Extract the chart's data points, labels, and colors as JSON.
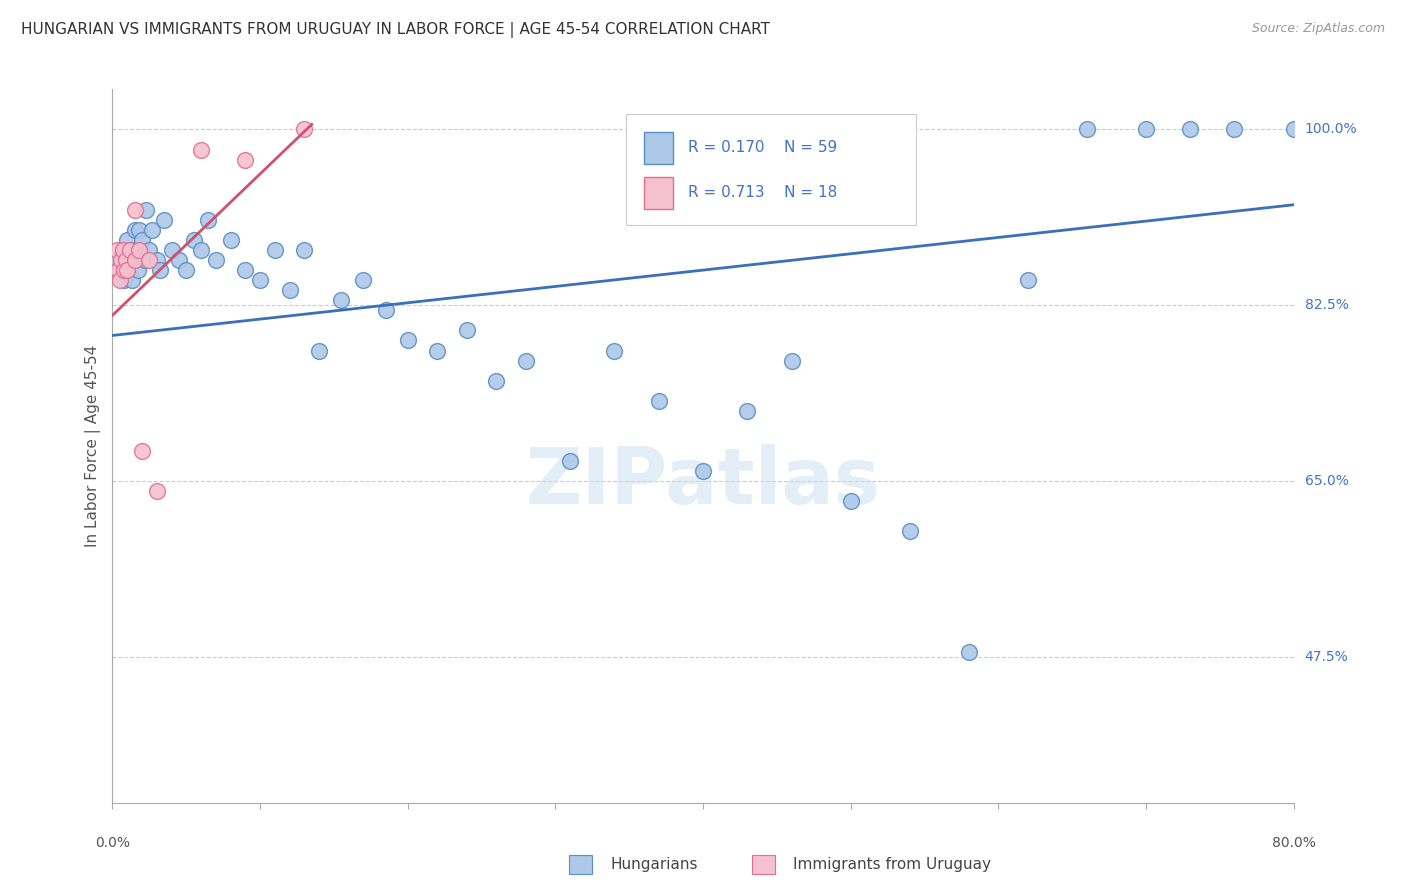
{
  "title": "HUNGARIAN VS IMMIGRANTS FROM URUGUAY IN LABOR FORCE | AGE 45-54 CORRELATION CHART",
  "source": "Source: ZipAtlas.com",
  "ylabel": "In Labor Force | Age 45-54",
  "ytick_labels": [
    "100.0%",
    "82.5%",
    "65.0%",
    "47.5%"
  ],
  "ytick_values": [
    1.0,
    0.825,
    0.65,
    0.475
  ],
  "xlim": [
    0.0,
    0.8
  ],
  "ylim": [
    0.33,
    1.04
  ],
  "legend_r1": "R = 0.170",
  "legend_n1": "N = 59",
  "legend_r2": "R = 0.713",
  "legend_n2": "N = 18",
  "blue_fill": "#adc8e8",
  "blue_edge": "#5b8ec4",
  "pink_fill": "#f5c0cf",
  "pink_edge": "#e07090",
  "blue_line_color": "#3b6fba",
  "pink_line_color": "#d05070",
  "label_blue": "#4472c4",
  "watermark": "ZIPatlas",
  "blue_points_x": [
    0.003,
    0.005,
    0.007,
    0.008,
    0.009,
    0.01,
    0.01,
    0.012,
    0.013,
    0.014,
    0.015,
    0.016,
    0.017,
    0.018,
    0.02,
    0.022,
    0.023,
    0.025,
    0.027,
    0.03,
    0.032,
    0.035,
    0.04,
    0.045,
    0.05,
    0.055,
    0.06,
    0.065,
    0.07,
    0.08,
    0.09,
    0.1,
    0.11,
    0.12,
    0.13,
    0.14,
    0.155,
    0.17,
    0.185,
    0.2,
    0.22,
    0.24,
    0.26,
    0.28,
    0.31,
    0.34,
    0.37,
    0.4,
    0.43,
    0.46,
    0.5,
    0.54,
    0.58,
    0.62,
    0.66,
    0.7,
    0.73,
    0.76,
    0.8
  ],
  "blue_points_y": [
    0.87,
    0.86,
    0.88,
    0.85,
    0.87,
    0.89,
    0.86,
    0.88,
    0.85,
    0.87,
    0.9,
    0.88,
    0.86,
    0.9,
    0.89,
    0.87,
    0.92,
    0.88,
    0.9,
    0.87,
    0.86,
    0.91,
    0.88,
    0.87,
    0.86,
    0.89,
    0.88,
    0.91,
    0.87,
    0.89,
    0.86,
    0.85,
    0.88,
    0.84,
    0.88,
    0.78,
    0.83,
    0.85,
    0.82,
    0.79,
    0.78,
    0.8,
    0.75,
    0.77,
    0.67,
    0.78,
    0.73,
    0.66,
    0.72,
    0.77,
    0.63,
    0.6,
    0.48,
    0.85,
    1.0,
    1.0,
    1.0,
    1.0,
    1.0
  ],
  "pink_points_x": [
    0.003,
    0.004,
    0.005,
    0.006,
    0.007,
    0.008,
    0.009,
    0.01,
    0.012,
    0.015,
    0.015,
    0.018,
    0.02,
    0.025,
    0.03,
    0.06,
    0.09,
    0.13
  ],
  "pink_points_y": [
    0.88,
    0.86,
    0.85,
    0.87,
    0.88,
    0.86,
    0.87,
    0.86,
    0.88,
    0.92,
    0.87,
    0.88,
    0.68,
    0.87,
    0.64,
    0.98,
    0.97,
    1.0
  ],
  "blue_line_x0": 0.0,
  "blue_line_x1": 0.8,
  "blue_line_y0": 0.795,
  "blue_line_y1": 0.925,
  "pink_line_x0": 0.0,
  "pink_line_x1": 0.135,
  "pink_line_y0": 0.815,
  "pink_line_y1": 1.005
}
